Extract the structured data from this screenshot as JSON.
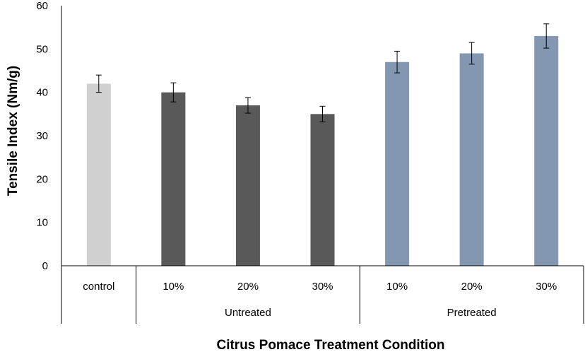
{
  "chart_data": {
    "type": "bar",
    "title": "",
    "xlabel": "Citrus Pomace Treatment Condition",
    "ylabel": "Tensile Index (Nm/g)",
    "ylim": [
      0,
      60
    ],
    "yticks": [
      0,
      10,
      20,
      30,
      40,
      50,
      60
    ],
    "grid": false,
    "legend": "none",
    "categories": [
      "control",
      "10%",
      "20%",
      "30%",
      "10%",
      "20%",
      "30%"
    ],
    "groups": [
      {
        "label": "",
        "categories": [
          "control"
        ]
      },
      {
        "label": "Untreated",
        "categories": [
          "10%",
          "20%",
          "30%"
        ]
      },
      {
        "label": "Pretreated",
        "categories": [
          "10%",
          "20%",
          "30%"
        ]
      }
    ],
    "values": [
      42,
      40,
      37,
      35,
      47,
      49,
      53
    ],
    "errors": [
      2,
      2.2,
      1.8,
      1.8,
      2.5,
      2.5,
      2.8
    ],
    "bar_colors": [
      "#d0d0d0",
      "#595959",
      "#595959",
      "#595959",
      "#8497b0",
      "#8497b0",
      "#8497b0"
    ]
  }
}
